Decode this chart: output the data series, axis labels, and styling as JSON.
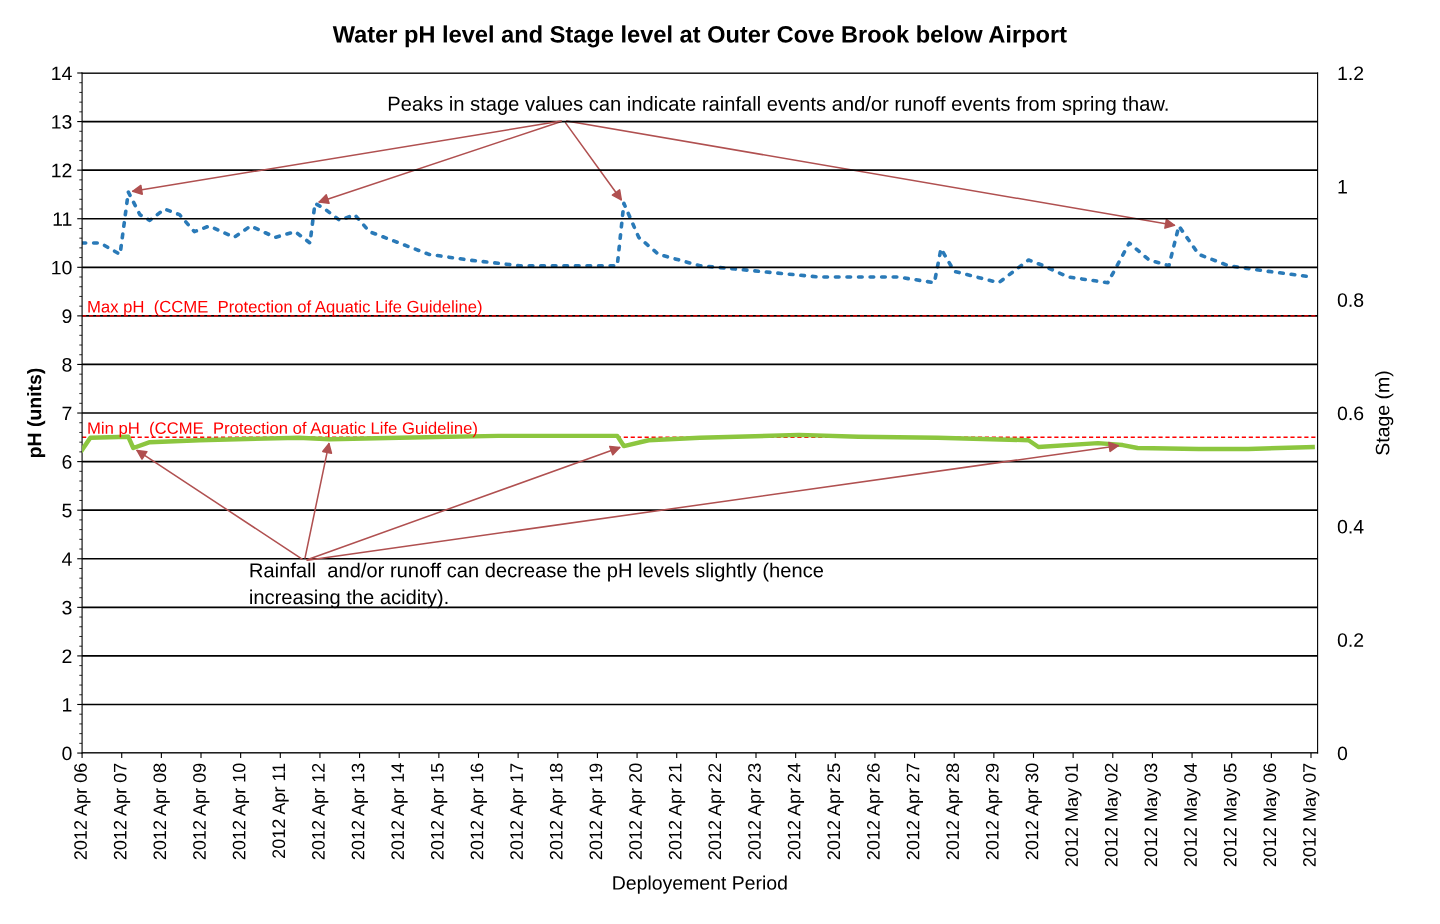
{
  "chart_data": {
    "type": "line",
    "title": "Water pH level and Stage level at Outer Cove Brook below Airport",
    "xlabel": "Deployement Period",
    "ylabel": "pH (units)",
    "y2label": "Stage (m)",
    "xlim": [
      "2012-04-06",
      "2012-05-07T04:00"
    ],
    "xticks": [
      {
        "value": "2012-04-06",
        "label": "2012 Apr 06"
      },
      {
        "value": "2012-04-07",
        "label": "2012 Apr 07"
      },
      {
        "value": "2012-04-08",
        "label": "2012 Apr 08"
      },
      {
        "value": "2012-04-09",
        "label": "2012 Apr 09"
      },
      {
        "value": "2012-04-10",
        "label": "2012 Apr 10"
      },
      {
        "value": "2012-04-11",
        "label": "2012 Apr 11"
      },
      {
        "value": "2012-04-12",
        "label": "2012 Apr 12"
      },
      {
        "value": "2012-04-13",
        "label": "2012 Apr 13"
      },
      {
        "value": "2012-04-14",
        "label": "2012 Apr 14"
      },
      {
        "value": "2012-04-15",
        "label": "2012 Apr 15"
      },
      {
        "value": "2012-04-16",
        "label": "2012 Apr 16"
      },
      {
        "value": "2012-04-17",
        "label": "2012 Apr 17"
      },
      {
        "value": "2012-04-18",
        "label": "2012 Apr 18"
      },
      {
        "value": "2012-04-19",
        "label": "2012 Apr 19"
      },
      {
        "value": "2012-04-20",
        "label": "2012 Apr 20"
      },
      {
        "value": "2012-04-21",
        "label": "2012 Apr 21"
      },
      {
        "value": "2012-04-22",
        "label": "2012 Apr 22"
      },
      {
        "value": "2012-04-23",
        "label": "2012 Apr 23"
      },
      {
        "value": "2012-04-24",
        "label": "2012 Apr 24"
      },
      {
        "value": "2012-04-25",
        "label": "2012 Apr 25"
      },
      {
        "value": "2012-04-26",
        "label": "2012 Apr 26"
      },
      {
        "value": "2012-04-27",
        "label": "2012 Apr 27"
      },
      {
        "value": "2012-04-28",
        "label": "2012 Apr 28"
      },
      {
        "value": "2012-04-29",
        "label": "2012 Apr 29"
      },
      {
        "value": "2012-04-30",
        "label": "2012 Apr 30"
      },
      {
        "value": "2012-05-01",
        "label": "2012 May 01"
      },
      {
        "value": "2012-05-02",
        "label": "2012 May 02"
      },
      {
        "value": "2012-05-03",
        "label": "2012 May 03"
      },
      {
        "value": "2012-05-04",
        "label": "2012 May 04"
      },
      {
        "value": "2012-05-05",
        "label": "2012 May 05"
      },
      {
        "value": "2012-05-06",
        "label": "2012 May 06"
      },
      {
        "value": "2012-05-07",
        "label": "2012 May 07"
      }
    ],
    "ylim": [
      0,
      14
    ],
    "yticks": [
      0,
      1,
      2,
      3,
      4,
      5,
      6,
      7,
      8,
      9,
      10,
      11,
      12,
      13,
      14
    ],
    "y2lim": [
      0,
      1.2
    ],
    "y2ticks": [
      0,
      0.2,
      0.4,
      0.6,
      0.8,
      1,
      1.2
    ],
    "grid": "y",
    "legend": false,
    "series": [
      {
        "color": "#8cc63f",
        "line_style": "solid",
        "marker": "none",
        "x": [
          "2012-04-06T00:00",
          "2012-04-06T05:00",
          "2012-04-07T04:00",
          "2012-04-07T07:00",
          "2012-04-07T17:00",
          "2012-04-08T23:00",
          "2012-04-11T11:00",
          "2012-04-12T06:00",
          "2012-04-14T00:00",
          "2012-04-16T12:00",
          "2012-04-19T12:00",
          "2012-04-19T16:00",
          "2012-04-20T07:00",
          "2012-04-21T14:00",
          "2012-04-24T02:00",
          "2012-04-25T14:00",
          "2012-04-27T14:00",
          "2012-04-29T21:00",
          "2012-04-30T03:00",
          "2012-05-01T15:00",
          "2012-05-02T06:00",
          "2012-05-02T15:00",
          "2012-05-04T04:00",
          "2012-05-05T10:00",
          "2012-05-07T01:00"
        ],
        "values": [
          6.24,
          6.49,
          6.51,
          6.28,
          6.4,
          6.44,
          6.49,
          6.46,
          6.49,
          6.53,
          6.53,
          6.32,
          6.44,
          6.49,
          6.55,
          6.51,
          6.49,
          6.44,
          6.3,
          6.38,
          6.34,
          6.28,
          6.26,
          6.26,
          6.3
        ]
      },
      {
        "color": "#2a7ab8",
        "line_style": "dotted",
        "marker": "none",
        "axis": "y2",
        "x": [
          "2012-04-06T00:00",
          "2012-04-06T11:00",
          "2012-04-06T23:00",
          "2012-04-07T04:00",
          "2012-04-07T11:00",
          "2012-04-07T17:00",
          "2012-04-08T02:00",
          "2012-04-08T11:00",
          "2012-04-08T20:00",
          "2012-04-09T05:00",
          "2012-04-09T20:00",
          "2012-04-10T06:00",
          "2012-04-10T21:00",
          "2012-04-11T09:00",
          "2012-04-11T18:00",
          "2012-04-11T21:00",
          "2012-04-12T03:00",
          "2012-04-12T12:00",
          "2012-04-12T21:00",
          "2012-04-13T06:00",
          "2012-04-14T00:00",
          "2012-04-14T18:00",
          "2012-04-15T18:00",
          "2012-04-17T01:00",
          "2012-04-18T01:00",
          "2012-04-19T01:00",
          "2012-04-19T12:00",
          "2012-04-19T16:00",
          "2012-04-20T01:00",
          "2012-04-20T13:00",
          "2012-04-21T14:00",
          "2012-04-23T02:00",
          "2012-04-24T14:00",
          "2012-04-25T14:00",
          "2012-04-26T14:00",
          "2012-04-27T12:00",
          "2012-04-27T16:00",
          "2012-04-28T00:00",
          "2012-04-29T03:00",
          "2012-04-29T21:00",
          "2012-04-30T06:00",
          "2012-04-30T21:00",
          "2012-05-01T21:00",
          "2012-05-02T10:00",
          "2012-05-02T22:00",
          "2012-05-03T10:00",
          "2012-05-03T16:00",
          "2012-05-04T04:00",
          "2012-05-04T22:00",
          "2012-05-05T22:00",
          "2012-05-07T01:00"
        ],
        "values": [
          0.9,
          0.9,
          0.88,
          0.99,
          0.95,
          0.94,
          0.96,
          0.95,
          0.92,
          0.93,
          0.91,
          0.93,
          0.91,
          0.92,
          0.9,
          0.97,
          0.96,
          0.94,
          0.95,
          0.92,
          0.9,
          0.88,
          0.87,
          0.86,
          0.86,
          0.86,
          0.86,
          0.97,
          0.91,
          0.88,
          0.86,
          0.85,
          0.84,
          0.84,
          0.84,
          0.83,
          0.89,
          0.85,
          0.83,
          0.87,
          0.86,
          0.84,
          0.83,
          0.9,
          0.87,
          0.86,
          0.93,
          0.88,
          0.86,
          0.85,
          0.84
        ]
      }
    ],
    "ref_lines": [
      {
        "axis": "y",
        "value": 9,
        "label": "Max pH  (CCME  Protection of Aquatic Life Guideline)",
        "color": "#ff0000",
        "line_style": "dashed"
      },
      {
        "axis": "y",
        "value": 6.5,
        "label": "Min pH  (CCME  Protection of Aquatic Life Guideline)",
        "color": "#ff0000",
        "line_style": "dashed"
      }
    ],
    "annotations": [
      {
        "text": "Peaks in stage values can indicate rainfall events and/or runoff events from spring thaw.",
        "x": "2012-04-07T04:00",
        "y": 11.55
      },
      {
        "text": "Rainfall  and/or runoff can decrease the pH levels slightly (hence\nincreasing the acidity).",
        "x": "2012-04-07T07:00",
        "y": 6.28
      }
    ]
  }
}
